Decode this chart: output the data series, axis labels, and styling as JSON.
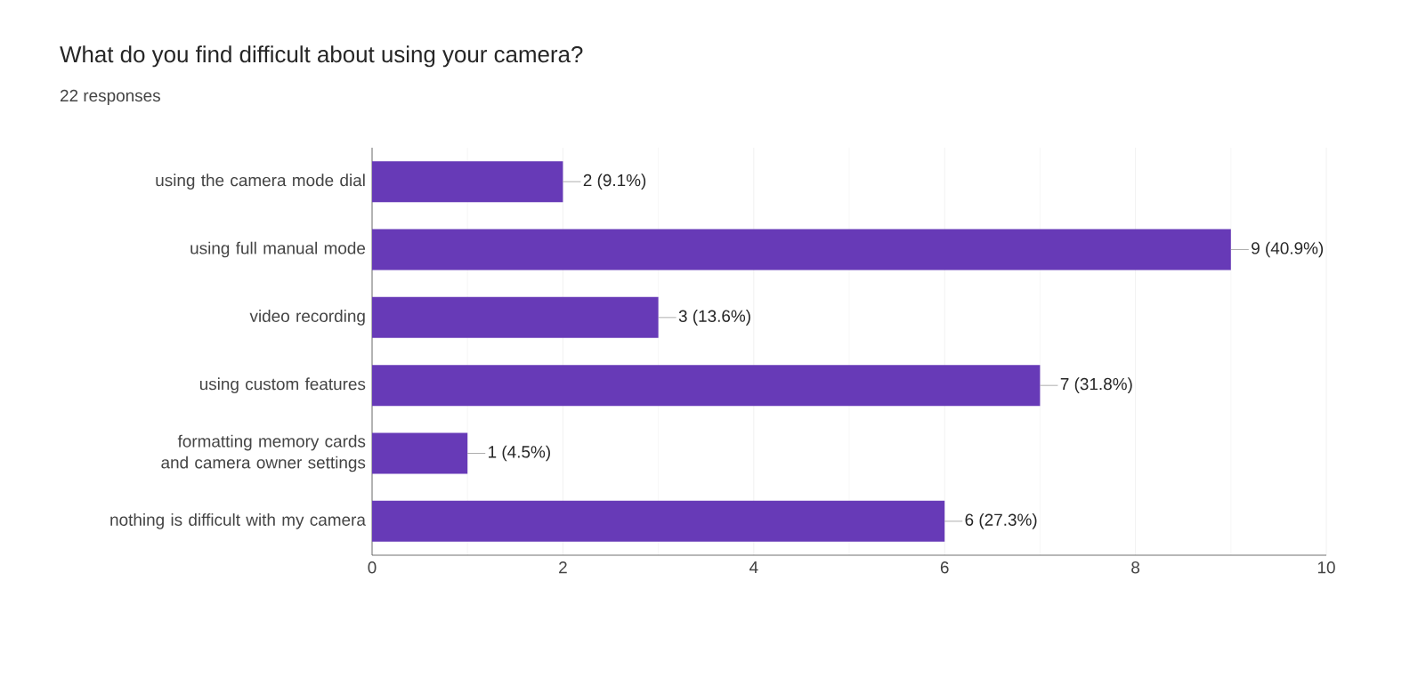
{
  "chart_data": {
    "type": "bar",
    "orientation": "horizontal",
    "title": "What do you find difficult about using your camera?",
    "subtitle": "22 responses",
    "categories": [
      "using the camera mode dial",
      "using full manual mode",
      "video recording",
      "using custom features",
      "formatting memory cards and camera owner settings",
      "nothing is difficult with my camera"
    ],
    "values": [
      2,
      9,
      3,
      7,
      1,
      6
    ],
    "value_labels": [
      "2 (9.1%)",
      "9 (40.9%)",
      "3 (13.6%)",
      "7 (31.8%)",
      "1 (4.5%)",
      "6 (27.3%)"
    ],
    "color": "#673ab7",
    "xlim": [
      0,
      10
    ],
    "xticks": [
      0,
      2,
      4,
      6,
      8,
      10
    ],
    "grid": "x"
  }
}
